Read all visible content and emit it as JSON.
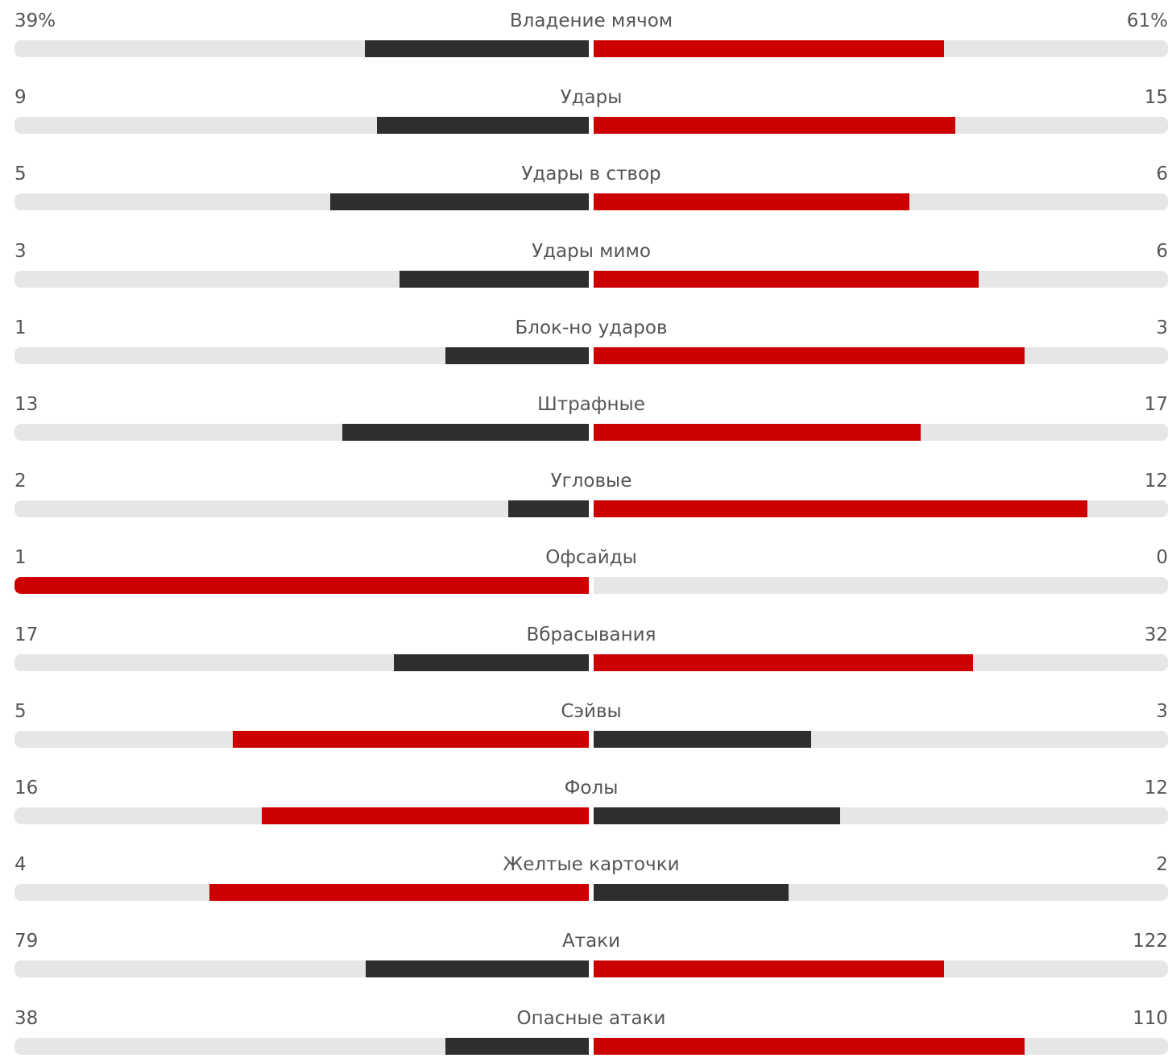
{
  "colors": {
    "leading": "#cc0000",
    "trailing": "#2e2e2e",
    "track": "#e6e6e6",
    "text": "#555555"
  },
  "stats": [
    {
      "label": "Владение мячом",
      "left_display": "39%",
      "right_display": "61%",
      "left_share": 0.39,
      "right_share": 0.61,
      "left_color": "#2e2e2e",
      "right_color": "#cc0000"
    },
    {
      "label": "Удары",
      "left_display": "9",
      "right_display": "15",
      "left_share": 0.369,
      "right_share": 0.63,
      "left_color": "#2e2e2e",
      "right_color": "#cc0000"
    },
    {
      "label": "Удары в створ",
      "left_display": "5",
      "right_display": "6",
      "left_share": 0.45,
      "right_share": 0.55,
      "left_color": "#2e2e2e",
      "right_color": "#cc0000"
    },
    {
      "label": "Удары мимо",
      "left_display": "3",
      "right_display": "6",
      "left_share": 0.329,
      "right_share": 0.67,
      "left_color": "#2e2e2e",
      "right_color": "#cc0000"
    },
    {
      "label": "Блок-но ударов",
      "left_display": "1",
      "right_display": "3",
      "left_share": 0.249,
      "right_share": 0.75,
      "left_color": "#2e2e2e",
      "right_color": "#cc0000"
    },
    {
      "label": "Штрафные",
      "left_display": "13",
      "right_display": "17",
      "left_share": 0.429,
      "right_share": 0.57,
      "left_color": "#2e2e2e",
      "right_color": "#cc0000"
    },
    {
      "label": "Угловые",
      "left_display": "2",
      "right_display": "12",
      "left_share": 0.14,
      "right_share": 0.86,
      "left_color": "#2e2e2e",
      "right_color": "#cc0000"
    },
    {
      "label": "Офсайды",
      "left_display": "1",
      "right_display": "0",
      "left_share": 1.0,
      "right_share": 0.0,
      "left_color": "#cc0000",
      "right_color": "#2e2e2e"
    },
    {
      "label": "Вбрасывания",
      "left_display": "17",
      "right_display": "32",
      "left_share": 0.339,
      "right_share": 0.66,
      "left_color": "#2e2e2e",
      "right_color": "#cc0000"
    },
    {
      "label": "Сэйвы",
      "left_display": "5",
      "right_display": "3",
      "left_share": 0.62,
      "right_share": 0.379,
      "left_color": "#cc0000",
      "right_color": "#2e2e2e"
    },
    {
      "label": "Фолы",
      "left_display": "16",
      "right_display": "12",
      "left_share": 0.57,
      "right_share": 0.429,
      "left_color": "#cc0000",
      "right_color": "#2e2e2e"
    },
    {
      "label": "Желтые карточки",
      "left_display": "4",
      "right_display": "2",
      "left_share": 0.66,
      "right_share": 0.339,
      "left_color": "#cc0000",
      "right_color": "#2e2e2e"
    },
    {
      "label": "Атаки",
      "left_display": "79",
      "right_display": "122",
      "left_share": 0.389,
      "right_share": 0.61,
      "left_color": "#2e2e2e",
      "right_color": "#cc0000"
    },
    {
      "label": "Опасные атаки",
      "left_display": "38",
      "right_display": "110",
      "left_share": 0.249,
      "right_share": 0.75,
      "left_color": "#2e2e2e",
      "right_color": "#cc0000"
    }
  ]
}
